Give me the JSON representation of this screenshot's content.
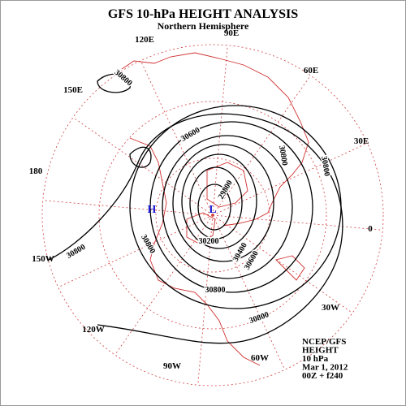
{
  "header": {
    "title": "GFS 10-hPa HEIGHT ANALYSIS",
    "subtitle": "Northern Hemisphere"
  },
  "longitude_labels": [
    "90E",
    "60E",
    "30E",
    "0",
    "30W",
    "60W",
    "90W",
    "120W",
    "150W",
    "180",
    "150E",
    "120E"
  ],
  "pressure_systems": [
    "H",
    "L"
  ],
  "contour_labels": [
    "30800",
    "30600",
    "30800",
    "30800",
    "29800",
    "30200",
    "30400",
    "30600",
    "30800",
    "30800",
    "30800",
    "30800"
  ],
  "info": [
    "NCEP/GFS",
    "HEIGHT",
    "10 hPa",
    "Mar 1, 2012",
    "00Z + f240"
  ]
}
